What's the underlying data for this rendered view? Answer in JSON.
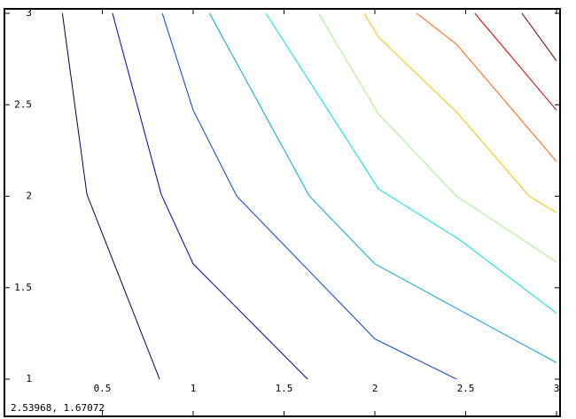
{
  "chart_data": {
    "type": "line",
    "status": "2.53968,  1.67072",
    "xlim": [
      0,
      3
    ],
    "ylim": [
      1,
      3
    ],
    "xticks": [
      0.5,
      1,
      1.5,
      2,
      2.5,
      3
    ],
    "yticks": [
      1,
      1.5,
      2,
      2.5,
      3
    ],
    "series": [
      {
        "color": "#000050",
        "x": [
          0.28,
          0.415,
          0.815
        ],
        "values": [
          3,
          2.01,
          1
        ]
      },
      {
        "color": "#0000a0",
        "x": [
          0.556,
          0.824,
          1.0,
          1.63
        ],
        "values": [
          3,
          2.01,
          1.63,
          1
        ]
      },
      {
        "color": "#0040d0",
        "x": [
          0.83,
          1.0,
          1.24,
          2.0,
          2.45
        ],
        "values": [
          3,
          2.47,
          2.0,
          1.22,
          1
        ]
      },
      {
        "color": "#00a0d8",
        "x": [
          1.09,
          1.64,
          2.0,
          3.0
        ],
        "values": [
          3,
          2.0,
          1.63,
          1.09
        ]
      },
      {
        "color": "#00e0e0",
        "x": [
          1.4,
          2.02,
          2.47,
          3.0
        ],
        "values": [
          3,
          2.04,
          1.76,
          1.36
        ]
      },
      {
        "color": "#a0f080",
        "x": [
          1.69,
          2.02,
          2.45,
          3.0
        ],
        "values": [
          3,
          2.45,
          2.0,
          1.64
        ]
      },
      {
        "color": "#f0c000",
        "x": [
          1.94,
          2.02,
          2.45,
          2.85,
          3.0
        ],
        "values": [
          3,
          2.87,
          2.46,
          2.0,
          1.91
        ]
      },
      {
        "color": "#ff6000",
        "x": [
          2.23,
          2.45,
          3.0
        ],
        "values": [
          3,
          2.83,
          2.19
        ]
      },
      {
        "color": "#d00000",
        "x": [
          2.55,
          3.0
        ],
        "values": [
          3,
          2.47
        ]
      },
      {
        "color": "#600000",
        "x": [
          2.81,
          3.0
        ],
        "values": [
          3,
          2.74
        ]
      }
    ]
  }
}
